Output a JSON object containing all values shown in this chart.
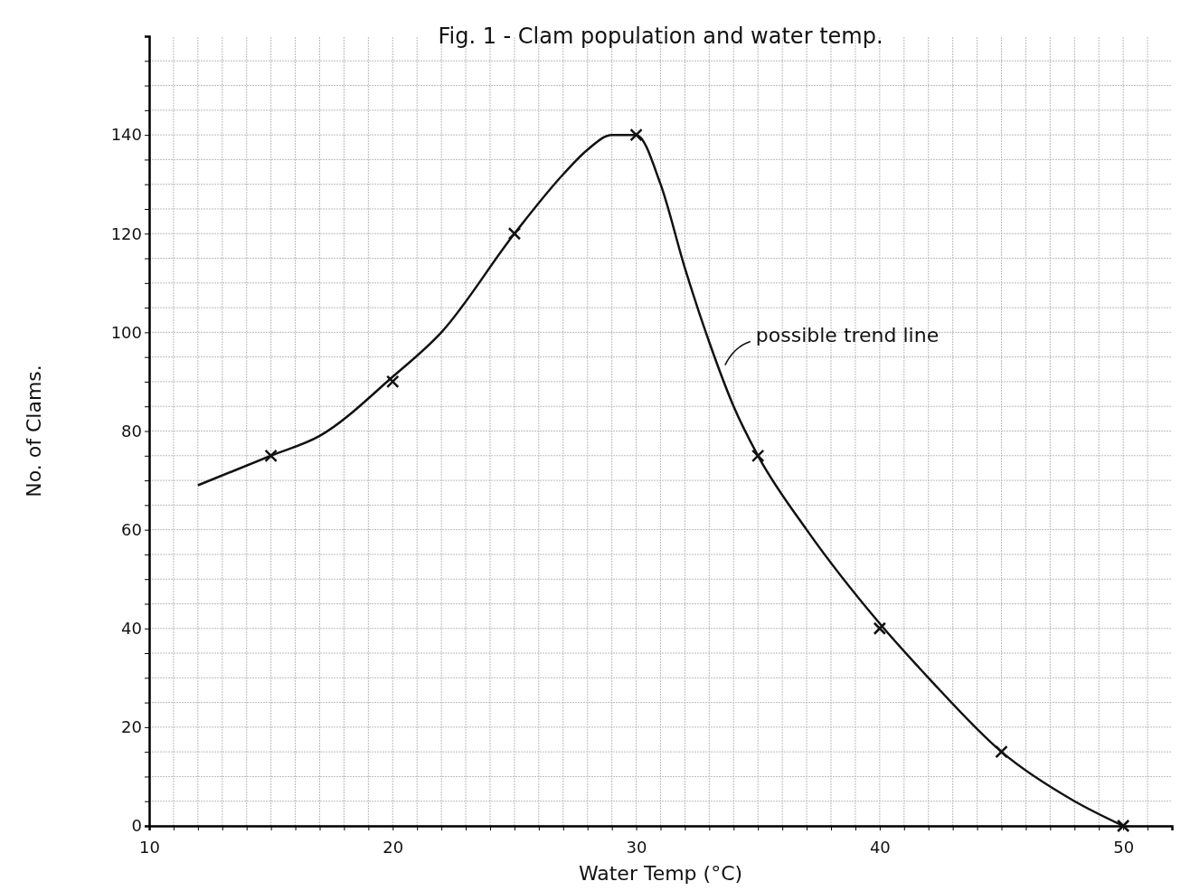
{
  "chart_data": {
    "type": "scatter",
    "title": "Fig. 1 - Clam population and water temp.",
    "xlabel": "Water Temp (°C)",
    "ylabel": "No. of Clams.",
    "xlim": [
      10,
      52
    ],
    "ylim": [
      0,
      160
    ],
    "xticks": [
      10,
      {
        "value": 11,
        "label": null
      },
      {
        "value": 12,
        "label": null
      },
      {
        "value": 13,
        "label": null
      },
      {
        "value": 14,
        "label": null
      },
      {
        "value": 15,
        "label": null
      },
      {
        "value": 16,
        "label": null
      },
      {
        "value": 17,
        "label": null
      },
      {
        "value": 18,
        "label": null
      },
      {
        "value": 19,
        "label": null
      },
      20,
      {
        "value": 21,
        "label": null
      },
      {
        "value": 22,
        "label": null
      },
      {
        "value": 23,
        "label": null
      },
      {
        "value": 24,
        "label": null
      },
      {
        "value": 25,
        "label": null
      },
      {
        "value": 26,
        "label": null
      },
      {
        "value": 27,
        "label": null
      },
      {
        "value": 28,
        "label": null
      },
      {
        "value": 29,
        "label": null
      },
      30,
      {
        "value": 31,
        "label": null
      },
      {
        "value": 32,
        "label": null
      },
      {
        "value": 33,
        "label": null
      },
      {
        "value": 34,
        "label": null
      },
      {
        "value": 35,
        "label": null
      },
      {
        "value": 36,
        "label": null
      },
      {
        "value": 37,
        "label": null
      },
      {
        "value": 38,
        "label": null
      },
      {
        "value": 39,
        "label": null
      },
      40,
      {
        "value": 41,
        "label": null
      },
      {
        "value": 42,
        "label": null
      },
      {
        "value": 43,
        "label": null
      },
      {
        "value": 44,
        "label": null
      },
      {
        "value": 45,
        "label": null
      },
      {
        "value": 46,
        "label": null
      },
      {
        "value": 47,
        "label": null
      },
      {
        "value": 48,
        "label": null
      },
      {
        "value": 49,
        "label": null
      },
      50,
      {
        "value": 51,
        "label": null
      }
    ],
    "yticks": [
      0,
      {
        "value": 5,
        "label": null
      },
      {
        "value": 10,
        "label": null
      },
      {
        "value": 15,
        "label": null
      },
      20,
      {
        "value": 25,
        "label": null
      },
      {
        "value": 30,
        "label": null
      },
      {
        "value": 35,
        "label": null
      },
      40,
      {
        "value": 45,
        "label": null
      },
      {
        "value": 50,
        "label": null
      },
      {
        "value": 55,
        "label": null
      },
      60,
      {
        "value": 65,
        "label": null
      },
      {
        "value": 70,
        "label": null
      },
      {
        "value": 75,
        "label": null
      },
      80,
      {
        "value": 85,
        "label": null
      },
      {
        "value": 90,
        "label": null
      },
      {
        "value": 95,
        "label": null
      },
      100,
      {
        "value": 105,
        "label": null
      },
      {
        "value": 110,
        "label": null
      },
      {
        "value": 115,
        "label": null
      },
      120,
      {
        "value": 125,
        "label": null
      },
      {
        "value": 130,
        "label": null
      },
      {
        "value": 135,
        "label": null
      },
      140,
      {
        "value": 145,
        "label": null
      },
      {
        "value": 150,
        "label": null
      },
      {
        "value": 155,
        "label": null
      }
    ],
    "grid": true,
    "marker": "cross",
    "series": [
      {
        "type": "line",
        "marker": "none",
        "color": "#111111",
        "x": [
          12,
          15,
          17,
          20,
          22,
          25,
          27,
          28,
          29,
          30,
          31,
          32,
          33,
          34,
          35,
          37,
          40,
          42,
          45,
          48,
          50
        ],
        "values": [
          69,
          75,
          79,
          91,
          100,
          120,
          132,
          137,
          140,
          140,
          130,
          113,
          98,
          85,
          75,
          60,
          41,
          30,
          15,
          5,
          0
        ]
      },
      {
        "color": "#111111",
        "x": [
          15,
          20,
          25,
          30,
          35,
          40,
          45,
          50
        ],
        "values": [
          75,
          90,
          120,
          140,
          75,
          40,
          15,
          0
        ]
      }
    ],
    "annotations": [
      {
        "text": "possible trend line",
        "x": 33.5,
        "y": 93
      }
    ]
  }
}
